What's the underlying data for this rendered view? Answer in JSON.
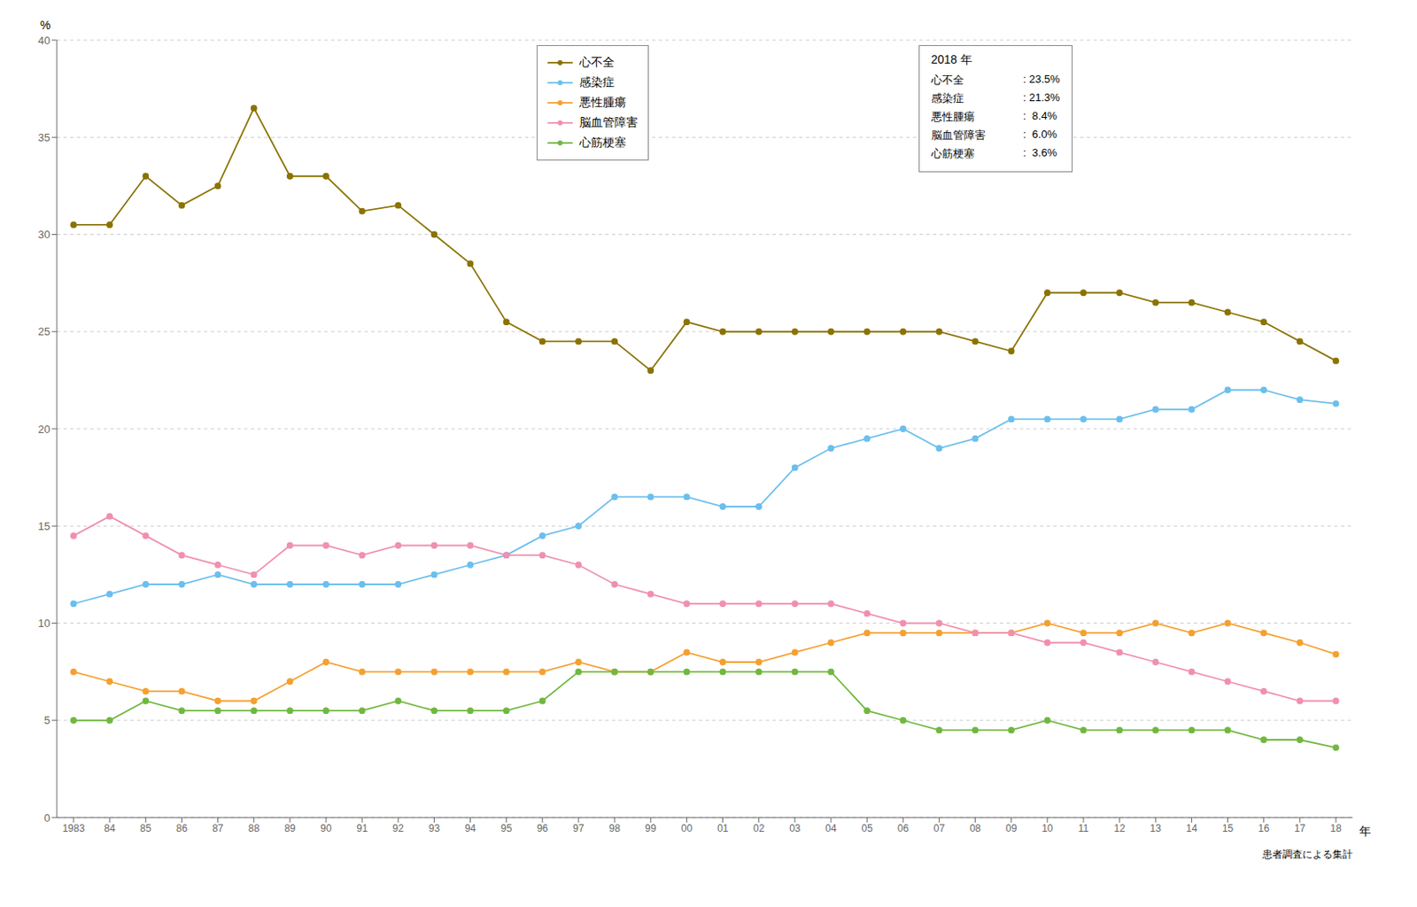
{
  "chart_data": {
    "type": "line",
    "x_label": "年",
    "y_label": "%",
    "footnote": "患者調査による集計",
    "categories": [
      "1983",
      "84",
      "85",
      "86",
      "87",
      "88",
      "89",
      "90",
      "91",
      "92",
      "93",
      "94",
      "95",
      "96",
      "97",
      "98",
      "99",
      "00",
      "01",
      "02",
      "03",
      "04",
      "05",
      "06",
      "07",
      "08",
      "09",
      "10",
      "11",
      "12",
      "13",
      "14",
      "15",
      "16",
      "17",
      "18"
    ],
    "series": [
      {
        "name": "心不全",
        "color": "#8B7300",
        "marker": "circle",
        "values": [
          30.5,
          30.5,
          33.0,
          31.5,
          32.5,
          36.5,
          33.0,
          33.0,
          31.2,
          31.5,
          30.0,
          28.5,
          25.5,
          24.5,
          24.5,
          24.5,
          23.0,
          25.5,
          25.0,
          25.0,
          25.0,
          25.0,
          25.0,
          25.0,
          25.0,
          24.5,
          24.0,
          27.0,
          27.0,
          27.0,
          26.5,
          26.5,
          26.0,
          25.5,
          24.5,
          23.5
        ]
      },
      {
        "name": "感染症",
        "color": "#6BBFED",
        "marker": "circle",
        "values": [
          11.0,
          11.5,
          12.0,
          12.0,
          12.5,
          12.0,
          12.0,
          12.0,
          12.0,
          12.0,
          12.5,
          13.0,
          13.5,
          14.5,
          15.0,
          16.5,
          16.5,
          16.5,
          16.0,
          16.0,
          18.0,
          19.0,
          19.5,
          20.0,
          19.0,
          19.5,
          20.5,
          20.5,
          20.5,
          20.5,
          21.0,
          21.0,
          22.0,
          22.0,
          21.5,
          21.3
        ]
      },
      {
        "name": "悪性腫瘍",
        "color": "#F5A030",
        "marker": "circle",
        "values": [
          7.5,
          7.0,
          6.5,
          6.5,
          6.0,
          6.0,
          7.0,
          8.0,
          7.5,
          7.5,
          7.5,
          7.5,
          7.5,
          7.5,
          8.0,
          7.5,
          7.5,
          8.5,
          8.0,
          8.0,
          8.5,
          9.0,
          9.5,
          9.5,
          9.5,
          9.5,
          9.5,
          10.0,
          9.5,
          9.5,
          10.0,
          9.5,
          10.0,
          9.5,
          9.0,
          8.4
        ]
      },
      {
        "name": "脳血管障害",
        "color": "#F090B0",
        "marker": "circle",
        "values": [
          14.5,
          15.5,
          14.5,
          13.5,
          13.0,
          12.5,
          14.0,
          14.0,
          13.5,
          14.0,
          14.0,
          14.0,
          13.5,
          13.5,
          13.0,
          12.0,
          11.5,
          11.0,
          11.0,
          11.0,
          11.0,
          11.0,
          10.5,
          10.0,
          10.0,
          9.5,
          9.5,
          9.0,
          9.0,
          8.5,
          8.0,
          7.5,
          7.0,
          6.5,
          6.0,
          6.0
        ]
      },
      {
        "name": "心筋梗塞",
        "color": "#70B840",
        "marker": "circle",
        "values": [
          5.0,
          5.0,
          6.0,
          5.5,
          5.5,
          5.5,
          5.5,
          5.5,
          5.5,
          6.0,
          5.5,
          5.5,
          5.5,
          6.0,
          7.5,
          7.5,
          7.5,
          7.5,
          7.5,
          7.5,
          7.5,
          7.5,
          5.5,
          5.0,
          4.5,
          4.5,
          4.5,
          5.0,
          4.5,
          4.5,
          4.5,
          4.5,
          4.5,
          4.0,
          4.0,
          3.6
        ]
      }
    ],
    "ylim": [
      0,
      40
    ],
    "yticks": [
      0,
      5,
      10,
      15,
      20,
      25,
      30,
      35,
      40
    ],
    "grid": true,
    "legend": "top",
    "annotations": {
      "title": "2018 年",
      "rows": [
        [
          "心不全",
          ": 23.5%"
        ],
        [
          "感染症",
          ": 21.3%"
        ],
        [
          "悪性腫瘍",
          ":  8.4%"
        ],
        [
          "脳血管障害",
          ":  6.0%"
        ],
        [
          "心筋梗塞",
          ":  3.6%"
        ]
      ]
    }
  }
}
